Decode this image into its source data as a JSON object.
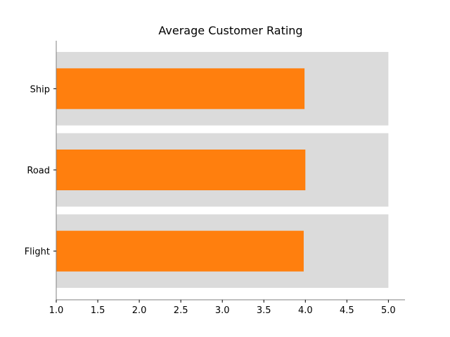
{
  "chart_data": {
    "type": "bar",
    "orientation": "horizontal",
    "title": "Average Customer Rating",
    "xlabel": "",
    "ylabel": "",
    "categories": [
      "Flight",
      "Road",
      "Ship"
    ],
    "values": [
      3.98,
      4.0,
      3.99
    ],
    "background_values": [
      5.0,
      5.0,
      5.0
    ],
    "xlim": [
      1.0,
      5.2
    ],
    "xticks": [
      1.0,
      1.5,
      2.0,
      2.5,
      3.0,
      3.5,
      4.0,
      4.5,
      5.0
    ],
    "xtick_labels": [
      "1.0",
      "1.5",
      "2.0",
      "2.5",
      "3.0",
      "3.5",
      "4.0",
      "4.5",
      "5.0"
    ],
    "grid": false,
    "legend": "none",
    "colors": {
      "bar": "#ff7f0e",
      "background_bar": "#dbdbdb",
      "axis": "#808080"
    }
  }
}
